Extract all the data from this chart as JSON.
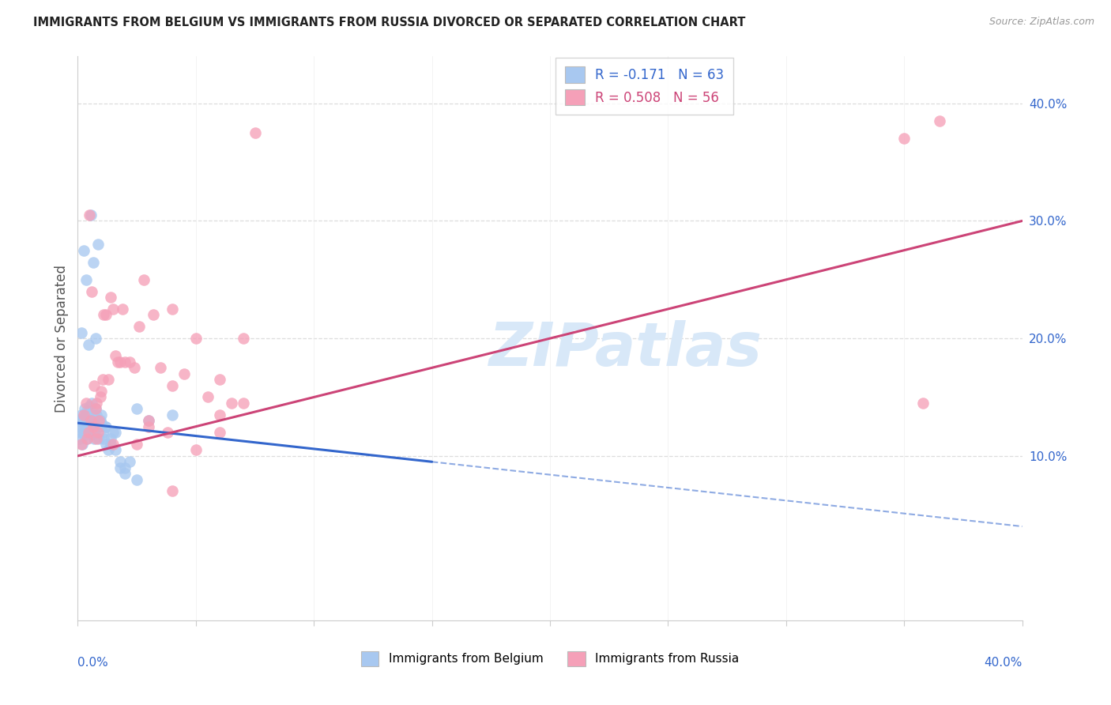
{
  "title": "IMMIGRANTS FROM BELGIUM VS IMMIGRANTS FROM RUSSIA DIVORCED OR SEPARATED CORRELATION CHART",
  "source": "Source: ZipAtlas.com",
  "ylabel": "Divorced or Separated",
  "xlim": [
    0.0,
    40.0
  ],
  "ylim": [
    -4.0,
    44.0
  ],
  "right_ytick_values": [
    10.0,
    20.0,
    30.0,
    40.0
  ],
  "right_ytick_labels": [
    "10.0%",
    "20.0%",
    "30.0%",
    "40.0%"
  ],
  "belgium_color": "#A8C8F0",
  "russia_color": "#F5A0B8",
  "belgium_line_color": "#3366CC",
  "russia_line_color": "#CC4477",
  "watermark": "ZIPatlas",
  "watermark_color": "#D8E8F8",
  "grid_color": "#DDDDDD",
  "spine_color": "#CCCCCC",
  "belgium_x": [
    0.05,
    0.08,
    0.1,
    0.12,
    0.15,
    0.18,
    0.2,
    0.22,
    0.25,
    0.28,
    0.3,
    0.32,
    0.35,
    0.38,
    0.4,
    0.42,
    0.45,
    0.48,
    0.5,
    0.52,
    0.55,
    0.58,
    0.6,
    0.62,
    0.65,
    0.68,
    0.7,
    0.72,
    0.75,
    0.8,
    0.85,
    0.9,
    0.95,
    1.0,
    1.05,
    1.1,
    1.15,
    1.2,
    1.3,
    1.4,
    1.5,
    1.6,
    1.8,
    2.0,
    2.2,
    2.5,
    0.15,
    0.25,
    0.35,
    0.45,
    0.55,
    0.65,
    0.75,
    0.85,
    1.0,
    1.2,
    1.4,
    1.6,
    1.8,
    2.0,
    2.5,
    3.0,
    4.0
  ],
  "belgium_y": [
    12.5,
    13.0,
    11.5,
    12.0,
    13.5,
    12.8,
    11.0,
    13.2,
    12.0,
    11.8,
    14.0,
    13.5,
    12.5,
    13.8,
    11.5,
    12.2,
    13.0,
    12.7,
    14.2,
    12.5,
    13.0,
    11.8,
    14.5,
    13.2,
    12.8,
    13.5,
    11.5,
    12.0,
    14.0,
    13.5,
    12.5,
    11.5,
    13.0,
    12.8,
    12.0,
    11.5,
    12.5,
    11.0,
    10.5,
    11.0,
    12.0,
    10.5,
    9.5,
    9.0,
    9.5,
    14.0,
    20.5,
    27.5,
    25.0,
    19.5,
    30.5,
    26.5,
    20.0,
    28.0,
    13.5,
    12.5,
    11.5,
    12.0,
    9.0,
    8.5,
    8.0,
    13.0,
    13.5
  ],
  "russia_x": [
    0.15,
    0.25,
    0.35,
    0.4,
    0.45,
    0.5,
    0.55,
    0.6,
    0.65,
    0.7,
    0.75,
    0.8,
    0.85,
    0.9,
    0.95,
    1.0,
    1.05,
    1.1,
    1.2,
    1.3,
    1.4,
    1.5,
    1.6,
    1.7,
    1.8,
    1.9,
    2.0,
    2.2,
    2.4,
    2.6,
    2.8,
    3.0,
    3.2,
    3.5,
    3.8,
    4.0,
    4.5,
    5.0,
    5.5,
    6.0,
    6.5,
    7.0,
    7.5,
    3.0,
    4.0,
    5.0,
    6.0,
    7.0,
    0.8,
    1.5,
    2.5,
    4.0,
    6.0,
    35.0,
    36.5,
    35.8
  ],
  "russia_y": [
    11.0,
    13.5,
    14.5,
    11.5,
    12.0,
    30.5,
    13.0,
    24.0,
    12.5,
    16.0,
    14.0,
    14.5,
    12.0,
    13.0,
    15.0,
    15.5,
    16.5,
    22.0,
    22.0,
    16.5,
    23.5,
    22.5,
    18.5,
    18.0,
    18.0,
    22.5,
    18.0,
    18.0,
    17.5,
    21.0,
    25.0,
    12.5,
    22.0,
    17.5,
    12.0,
    22.5,
    17.0,
    20.0,
    15.0,
    16.5,
    14.5,
    20.0,
    37.5,
    13.0,
    16.0,
    10.5,
    12.0,
    14.5,
    11.5,
    11.0,
    11.0,
    7.0,
    13.5,
    37.0,
    38.5,
    14.5
  ],
  "bel_line_x0": 0.0,
  "bel_line_y0": 12.8,
  "bel_line_x1": 15.0,
  "bel_line_y1": 9.5,
  "bel_dash_x0": 15.0,
  "bel_dash_y0": 9.5,
  "bel_dash_x1": 40.0,
  "bel_dash_y1": 4.0,
  "rus_line_x0": 0.0,
  "rus_line_y0": 10.0,
  "rus_line_x1": 40.0,
  "rus_line_y1": 30.0
}
